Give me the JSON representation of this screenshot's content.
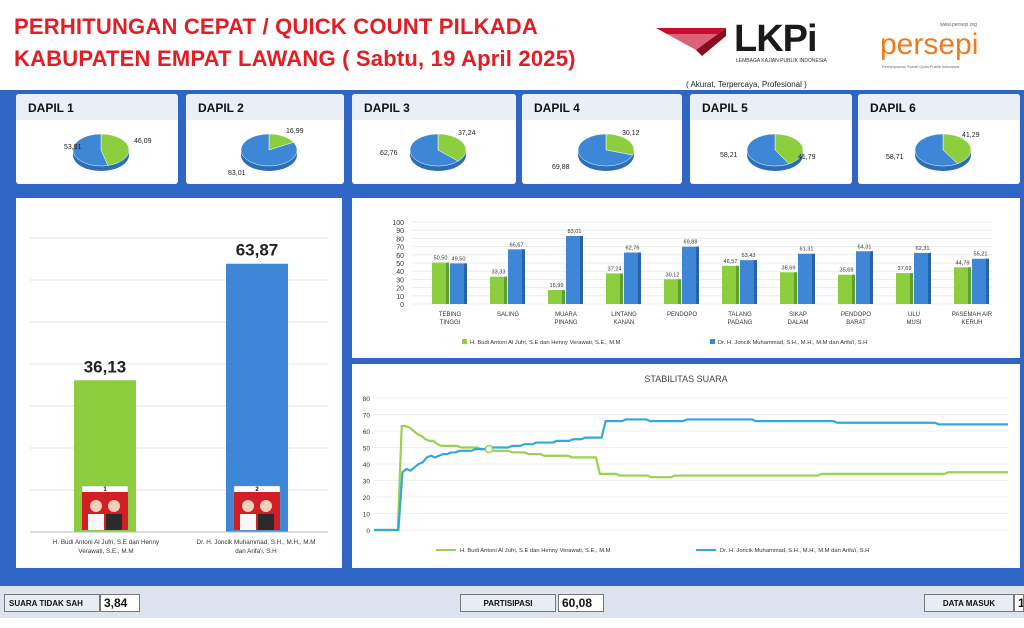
{
  "header": {
    "title_line1": "PERHITUNGAN CEPAT / QUICK COUNT PILKADA",
    "title_line2": "KABUPATEN EMPAT LAWANG ( Sabtu, 19 April 2025)",
    "lkpi_logo": "LKPi",
    "lkpi_subtitle": "LEMBAGA KAJIAN PUBLIK INDONESIA",
    "lkpi_tagline": "( Akurat, Terpercaya, Profesional )",
    "persepi_logo": "persepi",
    "persepi_url": "www.persepi.org",
    "persepi_subtitle": "Perhimpunan Survei Opini Publik Indonesia"
  },
  "colors": {
    "green": "#8cce3e",
    "blue": "#3d87d6",
    "line_green": "#9ad14f",
    "line_blue": "#34a9d8",
    "title_red": "#e31d24",
    "frame": "#2f66c6"
  },
  "dapil": [
    {
      "label": "DAPIL 1",
      "green": 46.09,
      "blue": 53.91,
      "green_label": "46,09",
      "blue_label": "53,91"
    },
    {
      "label": "DAPIL 2",
      "green": 16.99,
      "blue": 83.01,
      "green_label": "16,99",
      "blue_label": "83,01"
    },
    {
      "label": "DAPIL 3",
      "green": 37.24,
      "blue": 62.76,
      "green_label": "37,24",
      "blue_label": "62,76"
    },
    {
      "label": "DAPIL 4",
      "green": 30.12,
      "blue": 69.88,
      "green_label": "30,12",
      "blue_label": "69,88"
    },
    {
      "label": "DAPIL 5",
      "green": 41.79,
      "blue": 58.21,
      "green_label": "41,79",
      "blue_label": "58,21"
    },
    {
      "label": "DAPIL 6",
      "green": 41.29,
      "blue": 58.71,
      "green_label": "41,29",
      "blue_label": "58,71"
    }
  ],
  "chart_data": [
    {
      "type": "bar",
      "categories": [
        "H. Budi Antoni Al Jufri, S.E dan Henny Verawati, S.E., M.M",
        "Dr. H. Joncik Muhammad, S.H., M.H., M.M dan Arifa'i, S.H"
      ],
      "values": [
        36.13,
        63.87
      ],
      "value_labels": [
        "36,13",
        "63,87"
      ],
      "candidate_numbers": [
        "1",
        "2"
      ],
      "ylim": [
        0,
        70
      ]
    },
    {
      "type": "bar",
      "categories": [
        "TEBING TINGGI",
        "SALING",
        "MUARA PINANG",
        "LINTANG KANAN",
        "PENDOPO",
        "TALANG PADANG",
        "SIKAP DALAM",
        "PENDOPO BARAT",
        "ULU MUSI",
        "PASEMAH AIR KERUH"
      ],
      "yticks": [
        "0",
        "10",
        "20",
        "30",
        "40",
        "50",
        "60",
        "70",
        "80",
        "90",
        "100"
      ],
      "ylim": [
        0,
        100
      ],
      "legend_position": "bottom",
      "series": [
        {
          "name": "H. Budi Antoni Al Jufri, S.E dan Henny Verawati, S.E., M.M",
          "values": [
            50.5,
            33.33,
            16.99,
            37.24,
            30.12,
            46.57,
            38.69,
            35.69,
            37.69,
            44.79
          ],
          "labels": [
            "50,50",
            "33,33",
            "16,99",
            "37,24",
            "30,12",
            "46,57",
            "38,69",
            "35,69",
            "37,69",
            "44,79"
          ]
        },
        {
          "name": "Dr. H. Joncik Muhammad, S.H., M.H., M.M dan Arifa'i, S.H",
          "values": [
            49.5,
            66.67,
            83.01,
            62.76,
            69.88,
            53.43,
            61.31,
            64.31,
            62.31,
            55.21
          ],
          "labels": [
            "49,50",
            "66,67",
            "83,01",
            "62,76",
            "69,88",
            "53,43",
            "61,31",
            "64,31",
            "62,31",
            "55,21"
          ]
        }
      ]
    },
    {
      "type": "line",
      "title": "STABILITAS SUARA",
      "yticks": [
        "0",
        "10",
        "20",
        "30",
        "40",
        "50",
        "60",
        "70",
        "80"
      ],
      "ylim": [
        0,
        80
      ],
      "legend_position": "bottom",
      "series": [
        {
          "name": "H. Budi Antoni Al Jufri, S.E dan Henny Verawati, S.E., M.M",
          "values": [
            0,
            0,
            0,
            0,
            0,
            0,
            0,
            63,
            63,
            62,
            60,
            58,
            57,
            55,
            54,
            54,
            52,
            51,
            51,
            51,
            51,
            51,
            50,
            50,
            50,
            50,
            50,
            49,
            49,
            49,
            48,
            48,
            48,
            48,
            48,
            47,
            47,
            47,
            47,
            46,
            46,
            46,
            46,
            45,
            45,
            45,
            45,
            45,
            45,
            45,
            44,
            44,
            44,
            44,
            44,
            44,
            44,
            34,
            34,
            34,
            34,
            34,
            33,
            33,
            33,
            33,
            33,
            33,
            33,
            33,
            32,
            32,
            32,
            32,
            32,
            32,
            33,
            33,
            33,
            33,
            33,
            33,
            33,
            33,
            33,
            33,
            33,
            33,
            33,
            33,
            33,
            33,
            33,
            33,
            33,
            33,
            33,
            33,
            33,
            33,
            33,
            33,
            33,
            33,
            33,
            33,
            33,
            33,
            33,
            33,
            33,
            33,
            33,
            34,
            34,
            34,
            34,
            34,
            34,
            34,
            34,
            34,
            34,
            34,
            34,
            34,
            34,
            34,
            34,
            34,
            34,
            34,
            34,
            34,
            34,
            34,
            34,
            34,
            34,
            34,
            34,
            34,
            34,
            34,
            34,
            35,
            35,
            35,
            35,
            35,
            35,
            35,
            35,
            35,
            35,
            35,
            35,
            35,
            35,
            35,
            35
          ]
        },
        {
          "name": "Dr. H. Joncik Muhammad, S.H., M.H., M.M dan Arifa'i, S.H",
          "values": [
            0,
            0,
            0,
            0,
            0,
            0,
            0,
            35,
            37,
            36,
            38,
            40,
            41,
            44,
            45,
            44,
            45,
            46,
            46,
            47,
            47,
            48,
            48,
            48,
            48,
            49,
            49,
            49,
            49,
            50,
            50,
            50,
            50,
            50,
            51,
            51,
            51,
            52,
            52,
            52,
            53,
            53,
            53,
            53,
            53,
            54,
            54,
            54,
            54,
            55,
            55,
            55,
            56,
            56,
            56,
            56,
            56,
            66,
            66,
            66,
            66,
            66,
            67,
            67,
            67,
            67,
            67,
            67,
            66,
            66,
            66,
            66,
            66,
            66,
            66,
            66,
            66,
            67,
            67,
            67,
            67,
            67,
            67,
            67,
            67,
            67,
            67,
            67,
            67,
            67,
            67,
            67,
            67,
            67,
            66,
            66,
            66,
            66,
            66,
            66,
            66,
            66,
            66,
            66,
            66,
            66,
            66,
            66,
            66,
            66,
            66,
            66,
            66,
            66,
            65,
            65,
            65,
            65,
            65,
            65,
            65,
            65,
            65,
            65,
            65,
            65,
            65,
            65,
            65,
            65,
            65,
            65,
            65,
            65,
            65,
            65,
            65,
            65,
            65,
            64,
            64,
            64,
            64,
            64,
            64,
            64,
            64,
            64,
            64,
            64,
            64,
            64,
            64,
            64,
            64,
            64,
            64
          ]
        }
      ]
    }
  ],
  "footer": {
    "invalid_label": "SUARA TIDAK SAH",
    "invalid_value": "3,84",
    "participation_label": "PARTISIPASI",
    "participation_value": "60,08",
    "data_in_label": "DATA MASUK",
    "data_in_value": "1"
  }
}
